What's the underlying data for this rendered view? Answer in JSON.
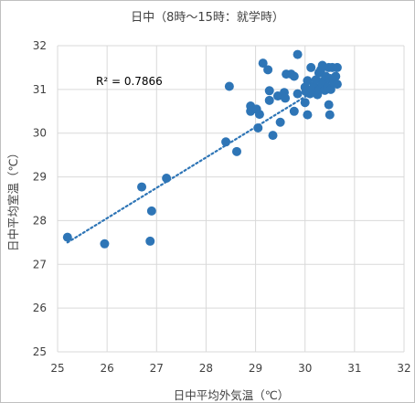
{
  "chart_data": {
    "type": "scatter",
    "title": "日中（8時～15時：就学時）",
    "xlabel": "日中平均外気温（℃）",
    "ylabel": "日中平均室温（℃）",
    "xlim": [
      25,
      32
    ],
    "ylim": [
      25,
      32
    ],
    "xticks": [
      "25",
      "26",
      "27",
      "28",
      "29",
      "30",
      "31",
      "32"
    ],
    "yticks": [
      "25",
      "26",
      "27",
      "28",
      "29",
      "30",
      "31",
      "32"
    ],
    "grid": true,
    "marker_color": "#2e75b6",
    "trendline": {
      "type": "linear",
      "style": "dotted",
      "x_range": [
        25.2,
        30.6
      ],
      "y_start": 27.5,
      "y_end": 31.25
    },
    "r2_label": "R² = 0.7866",
    "points": [
      [
        25.2,
        27.62
      ],
      [
        25.95,
        27.47
      ],
      [
        26.7,
        28.77
      ],
      [
        26.87,
        27.53
      ],
      [
        26.9,
        28.22
      ],
      [
        27.2,
        28.97
      ],
      [
        28.4,
        29.8
      ],
      [
        28.47,
        31.07
      ],
      [
        28.62,
        29.58
      ],
      [
        28.9,
        30.5
      ],
      [
        28.9,
        30.62
      ],
      [
        29.02,
        30.55
      ],
      [
        29.05,
        30.12
      ],
      [
        29.08,
        30.43
      ],
      [
        29.15,
        31.6
      ],
      [
        29.25,
        31.45
      ],
      [
        29.28,
        30.97
      ],
      [
        29.28,
        30.75
      ],
      [
        29.35,
        29.95
      ],
      [
        29.45,
        30.85
      ],
      [
        29.5,
        30.25
      ],
      [
        29.58,
        30.93
      ],
      [
        29.6,
        30.8
      ],
      [
        29.62,
        31.35
      ],
      [
        29.72,
        31.35
      ],
      [
        29.78,
        31.3
      ],
      [
        29.85,
        31.8
      ],
      [
        29.78,
        30.5
      ],
      [
        29.85,
        30.9
      ],
      [
        30.0,
        30.7
      ],
      [
        30.0,
        31.05
      ],
      [
        30.02,
        30.95
      ],
      [
        30.05,
        31.2
      ],
      [
        30.05,
        30.42
      ],
      [
        30.1,
        30.9
      ],
      [
        30.12,
        31.5
      ],
      [
        30.15,
        31.0
      ],
      [
        30.18,
        31.08
      ],
      [
        30.22,
        31.22
      ],
      [
        30.25,
        30.88
      ],
      [
        30.28,
        31.38
      ],
      [
        30.28,
        30.98
      ],
      [
        30.3,
        31.0
      ],
      [
        30.32,
        31.45
      ],
      [
        30.35,
        31.12
      ],
      [
        30.35,
        31.55
      ],
      [
        30.38,
        31.2
      ],
      [
        30.4,
        30.98
      ],
      [
        30.42,
        31.3
      ],
      [
        30.45,
        31.05
      ],
      [
        30.48,
        30.65
      ],
      [
        30.48,
        31.5
      ],
      [
        30.5,
        30.42
      ],
      [
        30.5,
        31.25
      ],
      [
        30.52,
        31.0
      ],
      [
        30.55,
        31.5
      ],
      [
        30.58,
        31.15
      ],
      [
        30.62,
        31.3
      ],
      [
        30.65,
        31.12
      ],
      [
        30.65,
        31.5
      ]
    ]
  }
}
